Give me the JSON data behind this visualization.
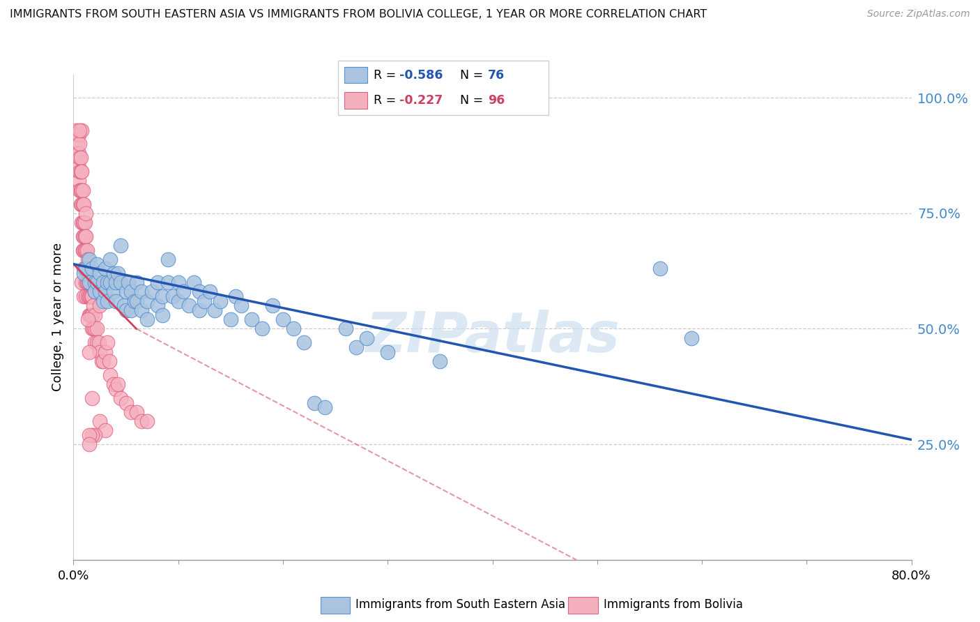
{
  "title": "IMMIGRANTS FROM SOUTH EASTERN ASIA VS IMMIGRANTS FROM BOLIVIA COLLEGE, 1 YEAR OR MORE CORRELATION CHART",
  "source": "Source: ZipAtlas.com",
  "ylabel": "College, 1 year or more",
  "yticks": [
    "100.0%",
    "75.0%",
    "50.0%",
    "25.0%"
  ],
  "ytick_vals": [
    1.0,
    0.75,
    0.5,
    0.25
  ],
  "xlim": [
    0.0,
    0.8
  ],
  "ylim": [
    0.0,
    1.05
  ],
  "legend_r_blue": "-0.586",
  "legend_n_blue": "76",
  "legend_r_pink": "-0.227",
  "legend_n_pink": "96",
  "blue_color": "#aac4e0",
  "blue_edge_color": "#5590d0",
  "blue_line_color": "#2255b0",
  "pink_color": "#f5b0c0",
  "pink_edge_color": "#e06080",
  "pink_line_color": "#d04060",
  "watermark": "ZIPatlas",
  "grid_color": "#cccccc",
  "right_axis_color": "#4488cc",
  "blue_scatter": [
    [
      0.01,
      0.62
    ],
    [
      0.012,
      0.63
    ],
    [
      0.015,
      0.6
    ],
    [
      0.015,
      0.65
    ],
    [
      0.018,
      0.63
    ],
    [
      0.02,
      0.6
    ],
    [
      0.02,
      0.58
    ],
    [
      0.022,
      0.64
    ],
    [
      0.022,
      0.6
    ],
    [
      0.025,
      0.62
    ],
    [
      0.025,
      0.58
    ],
    [
      0.028,
      0.6
    ],
    [
      0.028,
      0.56
    ],
    [
      0.03,
      0.63
    ],
    [
      0.03,
      0.58
    ],
    [
      0.032,
      0.6
    ],
    [
      0.032,
      0.56
    ],
    [
      0.035,
      0.65
    ],
    [
      0.035,
      0.6
    ],
    [
      0.038,
      0.62
    ],
    [
      0.038,
      0.58
    ],
    [
      0.04,
      0.6
    ],
    [
      0.04,
      0.56
    ],
    [
      0.042,
      0.62
    ],
    [
      0.045,
      0.68
    ],
    [
      0.045,
      0.6
    ],
    [
      0.048,
      0.55
    ],
    [
      0.05,
      0.58
    ],
    [
      0.05,
      0.54
    ],
    [
      0.052,
      0.6
    ],
    [
      0.055,
      0.58
    ],
    [
      0.055,
      0.54
    ],
    [
      0.058,
      0.56
    ],
    [
      0.06,
      0.6
    ],
    [
      0.06,
      0.56
    ],
    [
      0.065,
      0.58
    ],
    [
      0.065,
      0.54
    ],
    [
      0.07,
      0.56
    ],
    [
      0.07,
      0.52
    ],
    [
      0.075,
      0.58
    ],
    [
      0.08,
      0.6
    ],
    [
      0.08,
      0.55
    ],
    [
      0.085,
      0.57
    ],
    [
      0.085,
      0.53
    ],
    [
      0.09,
      0.65
    ],
    [
      0.09,
      0.6
    ],
    [
      0.095,
      0.57
    ],
    [
      0.1,
      0.6
    ],
    [
      0.1,
      0.56
    ],
    [
      0.105,
      0.58
    ],
    [
      0.11,
      0.55
    ],
    [
      0.115,
      0.6
    ],
    [
      0.12,
      0.58
    ],
    [
      0.12,
      0.54
    ],
    [
      0.125,
      0.56
    ],
    [
      0.13,
      0.58
    ],
    [
      0.135,
      0.54
    ],
    [
      0.14,
      0.56
    ],
    [
      0.15,
      0.52
    ],
    [
      0.155,
      0.57
    ],
    [
      0.16,
      0.55
    ],
    [
      0.17,
      0.52
    ],
    [
      0.18,
      0.5
    ],
    [
      0.19,
      0.55
    ],
    [
      0.2,
      0.52
    ],
    [
      0.21,
      0.5
    ],
    [
      0.22,
      0.47
    ],
    [
      0.23,
      0.34
    ],
    [
      0.24,
      0.33
    ],
    [
      0.26,
      0.5
    ],
    [
      0.27,
      0.46
    ],
    [
      0.28,
      0.48
    ],
    [
      0.3,
      0.45
    ],
    [
      0.35,
      0.43
    ],
    [
      0.56,
      0.63
    ],
    [
      0.59,
      0.48
    ]
  ],
  "pink_scatter": [
    [
      0.003,
      0.93
    ],
    [
      0.004,
      0.9
    ],
    [
      0.004,
      0.88
    ],
    [
      0.005,
      0.92
    ],
    [
      0.005,
      0.88
    ],
    [
      0.005,
      0.85
    ],
    [
      0.005,
      0.82
    ],
    [
      0.006,
      0.9
    ],
    [
      0.006,
      0.87
    ],
    [
      0.006,
      0.84
    ],
    [
      0.006,
      0.8
    ],
    [
      0.007,
      0.87
    ],
    [
      0.007,
      0.84
    ],
    [
      0.007,
      0.8
    ],
    [
      0.007,
      0.77
    ],
    [
      0.008,
      0.84
    ],
    [
      0.008,
      0.8
    ],
    [
      0.008,
      0.77
    ],
    [
      0.008,
      0.73
    ],
    [
      0.008,
      0.6
    ],
    [
      0.009,
      0.8
    ],
    [
      0.009,
      0.77
    ],
    [
      0.009,
      0.73
    ],
    [
      0.009,
      0.7
    ],
    [
      0.009,
      0.67
    ],
    [
      0.01,
      0.77
    ],
    [
      0.01,
      0.73
    ],
    [
      0.01,
      0.7
    ],
    [
      0.01,
      0.67
    ],
    [
      0.01,
      0.63
    ],
    [
      0.01,
      0.57
    ],
    [
      0.011,
      0.73
    ],
    [
      0.011,
      0.7
    ],
    [
      0.011,
      0.67
    ],
    [
      0.011,
      0.63
    ],
    [
      0.012,
      0.7
    ],
    [
      0.012,
      0.67
    ],
    [
      0.012,
      0.63
    ],
    [
      0.012,
      0.6
    ],
    [
      0.012,
      0.57
    ],
    [
      0.013,
      0.67
    ],
    [
      0.013,
      0.63
    ],
    [
      0.013,
      0.6
    ],
    [
      0.014,
      0.65
    ],
    [
      0.014,
      0.6
    ],
    [
      0.014,
      0.57
    ],
    [
      0.015,
      0.63
    ],
    [
      0.015,
      0.6
    ],
    [
      0.015,
      0.57
    ],
    [
      0.015,
      0.53
    ],
    [
      0.016,
      0.6
    ],
    [
      0.016,
      0.57
    ],
    [
      0.016,
      0.53
    ],
    [
      0.017,
      0.57
    ],
    [
      0.017,
      0.53
    ],
    [
      0.018,
      0.57
    ],
    [
      0.018,
      0.53
    ],
    [
      0.018,
      0.5
    ],
    [
      0.019,
      0.55
    ],
    [
      0.019,
      0.5
    ],
    [
      0.02,
      0.53
    ],
    [
      0.02,
      0.5
    ],
    [
      0.02,
      0.47
    ],
    [
      0.022,
      0.5
    ],
    [
      0.022,
      0.47
    ],
    [
      0.024,
      0.47
    ],
    [
      0.025,
      0.55
    ],
    [
      0.025,
      0.45
    ],
    [
      0.026,
      0.6
    ],
    [
      0.027,
      0.43
    ],
    [
      0.028,
      0.43
    ],
    [
      0.03,
      0.45
    ],
    [
      0.032,
      0.47
    ],
    [
      0.034,
      0.43
    ],
    [
      0.035,
      0.4
    ],
    [
      0.038,
      0.38
    ],
    [
      0.04,
      0.37
    ],
    [
      0.042,
      0.38
    ],
    [
      0.045,
      0.35
    ],
    [
      0.05,
      0.34
    ],
    [
      0.055,
      0.32
    ],
    [
      0.06,
      0.32
    ],
    [
      0.065,
      0.3
    ],
    [
      0.07,
      0.3
    ],
    [
      0.012,
      0.75
    ],
    [
      0.008,
      0.93
    ],
    [
      0.006,
      0.93
    ],
    [
      0.02,
      0.58
    ],
    [
      0.014,
      0.52
    ],
    [
      0.015,
      0.45
    ],
    [
      0.018,
      0.35
    ],
    [
      0.025,
      0.3
    ],
    [
      0.03,
      0.28
    ],
    [
      0.02,
      0.27
    ],
    [
      0.018,
      0.27
    ],
    [
      0.015,
      0.27
    ],
    [
      0.015,
      0.25
    ]
  ],
  "blue_line": [
    [
      0.0,
      0.64
    ],
    [
      0.8,
      0.26
    ]
  ],
  "pink_line_solid": [
    [
      0.0,
      0.64
    ],
    [
      0.06,
      0.5
    ]
  ],
  "pink_line_dash": [
    [
      0.06,
      0.5
    ],
    [
      0.48,
      0.0
    ]
  ]
}
